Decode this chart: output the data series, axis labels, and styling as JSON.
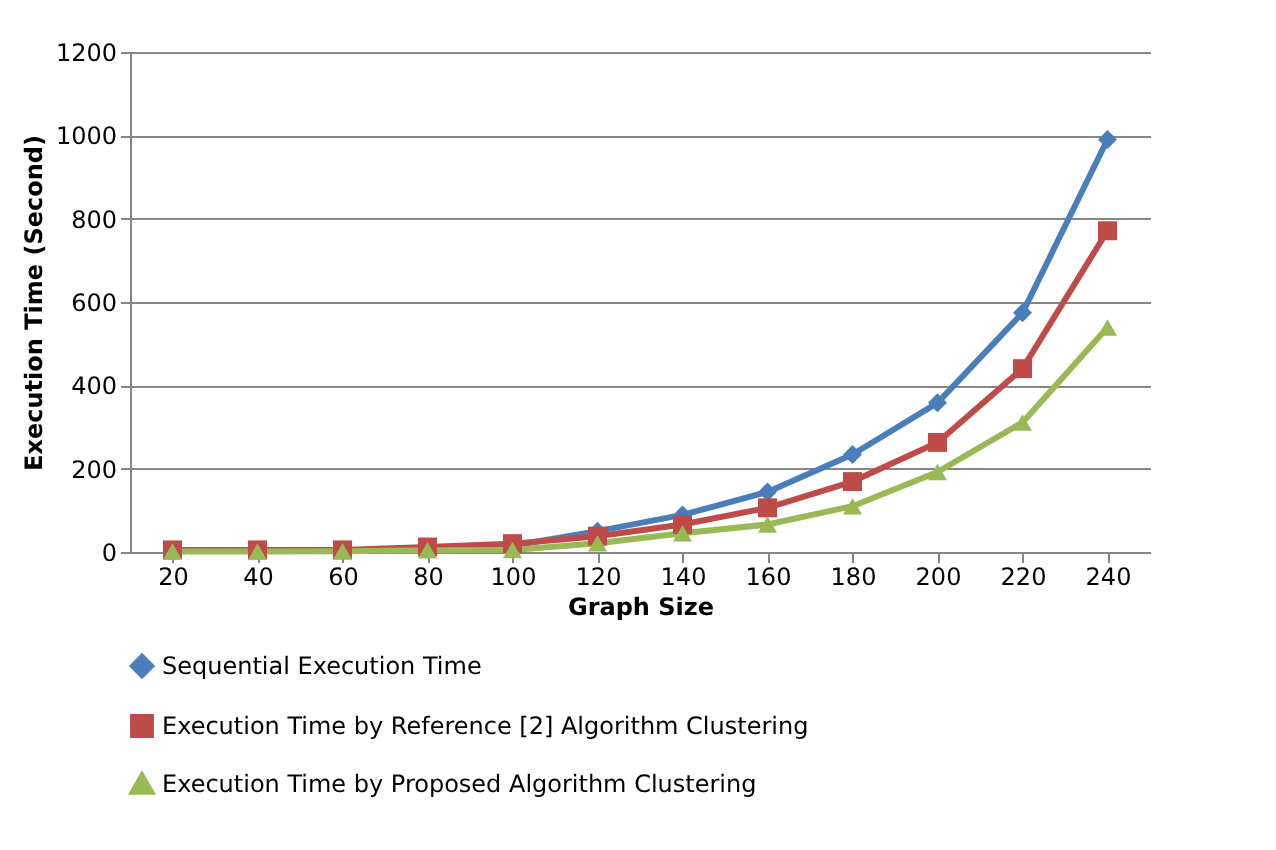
{
  "chart_data": {
    "type": "line",
    "xlabel": "Graph Size",
    "ylabel": "Execution Time (Second)",
    "categories": [
      "20",
      "40",
      "60",
      "80",
      "100",
      "120",
      "140",
      "160",
      "180",
      "200",
      "220",
      "240"
    ],
    "series": [
      {
        "name": "Sequential Execution Time",
        "color": "#4a7ebb",
        "marker": "diamond",
        "values": [
          null,
          null,
          null,
          10,
          15,
          50,
          89,
          144,
          234,
          358,
          574,
          990
        ]
      },
      {
        "name": "Execution Time by Reference [2] Algorithm Clustering",
        "color": "#be4b48",
        "marker": "square",
        "values": [
          5,
          5,
          5,
          12,
          20,
          38,
          66,
          106,
          169,
          263,
          440,
          771
        ]
      },
      {
        "name": "Execution Time by Proposed Algorithm Clustering",
        "color": "#98b954",
        "marker": "triangle",
        "values": [
          1,
          1,
          2,
          4,
          5,
          21,
          45,
          66,
          110,
          192,
          311,
          539
        ]
      }
    ],
    "ylim": [
      0,
      1200
    ],
    "yticks": [
      0,
      200,
      400,
      600,
      800,
      1000,
      1200
    ],
    "grid": "y",
    "legend": "bottom",
    "line_style": "solid"
  }
}
